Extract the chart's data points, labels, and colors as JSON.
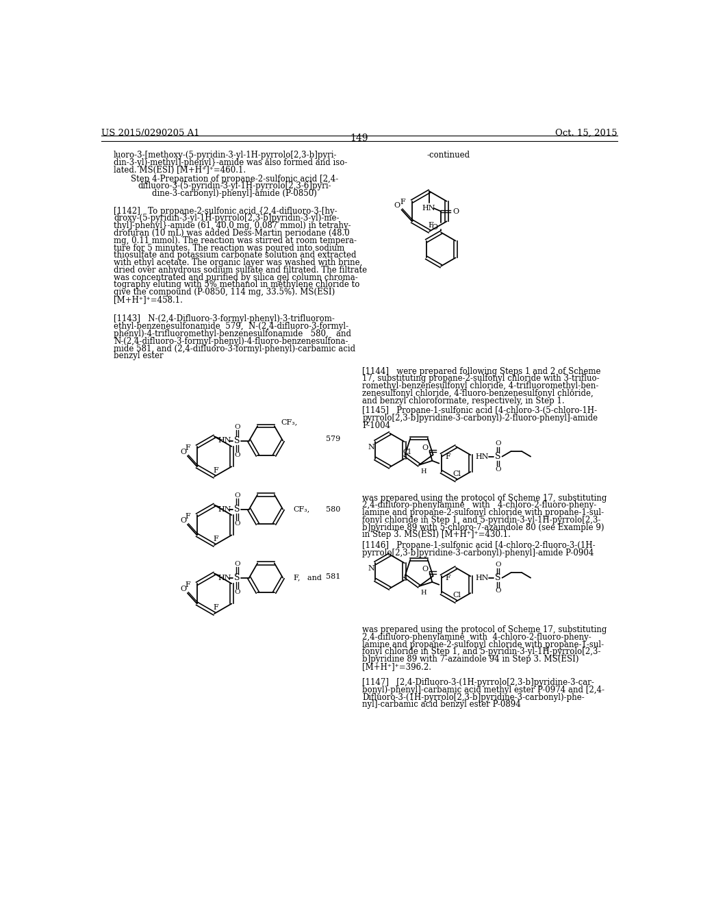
{
  "page_number": "149",
  "patent_number": "US 2015/0290205 A1",
  "patent_date": "Oct. 15, 2015",
  "background_color": "#ffffff",
  "top_text": "luoro-3-[methoxy-(5-pyridin-3-yl-1H-pyrrolo[2,3-b]pyri-\ndin-3-yl)-methyl]-phenyl}-amide was also formed and iso-\nlated. MS(ESI) [M+H⁺]⁺=460.1.",
  "step4_text": "Step 4-Preparation of propane-2-sulfonic acid [2,4-\ndifluoro-3-(5-pyridin-3-yl-1H-pyrrolo[2,3-6]pyri-\ndine-3-carbonyl)-phenyl]-amide (P-0850)",
  "p1142_text": "[1142]   To propane-2-sulfonic acid {2,4-difluoro-3-[hy-\ndroxy-(5-pyridin-3-yl-1H-pyrrolo[2,3-b]pyridin-3-yl)-me-\nthyl]-phenyl}-amide (61, 40.0 mg, 0.087 mmol) in tetrahy-\ndrofuran (10 mL) was added Dess-Martin periodane (48.0\nmg, 0.11 mmol). The reaction was stirred at room tempera-\nture for 5 minutes. The reaction was poured into sodium\nthiosulfate and potassium carbonate solution and extracted\nwith ethyl acetate. The organic layer was washed with brine,\ndried over anhydrous sodium sulfate and filtrated. The filtrate\nwas concentrated and purified by silica gel column chroma-\ntography eluting with 5% methanol in methylene chloride to\ngive the compound (P-0850, 114 mg, 33.5%). MS(ESI)\n[M+H⁺]⁺=458.1.",
  "p1143_text": "[1143]   N-(2,4-Difluoro-3-formyl-phenyl)-3-trifluorom-\nethyl-benzenesulfonamide  579,  N-(2,4-difluoro-3-formyl-\nphenyl)-4-trifluoromethyl-benzenesulfonamide   580,   and\nN-(2,4-difluoro-3-formyl-phenyl)-4-fluoro-benzenesulfona-\nmide 581, and (2,4-difluoro-3-formyl-phenyl)-carbamic acid\nbenzyl ester",
  "p1144_text": "[1144]   were prepared following Steps 1 and 2 of Scheme\n17, substituting propane-2-sulfonyl chloride with 3-trifluo-\nromethyl-benzenesulfonyl chloride, 4-trifluoromethyl-ben-\nzenesulfonyl chloride, 4-fluoro-benzenesulfonyl chloride,\nand benzyl chloroformate, respectively, in Step 1.",
  "p1145_text": "[1145]   Propane-1-sulfonic acid [4-chloro-3-(5-chloro-1H-\npyrrolo[2,3-b]pyridine-3-carbonyl)-2-fluoro-phenyl]-amide\nP-1004",
  "p1145b_text": "was prepared using the protocol of Scheme 17, substituting\n2,4-difluoro-phenylamine   with   4-chloro-2-fluoro-pheny-\nlamine and propane-2-sulfonyl chloride with propane-1-sul-\nfonyl chloride in Step 1, and 5-pyridin-3-yl-1H-pyrrolo[2,3-\nb]pyridine 89 with 5-chloro-7-azaindole 80 (see Example 9)\nin Step 3. MS(ESI) [M+H⁺]⁺=430.1.",
  "p1146_text": "[1146]   Propane-1-sulfonic acid [4-chloro-2-fluoro-3-(1H-\npyrrolo[2,3-b]pyridine-3-carbonyl)-phenyl]-amide P-0904",
  "p1146b_text": "was prepared using the protocol of Scheme 17, substituting\n2,4-difluoro-phenylamine  with  4-chloro-2-fluoro-pheny-\nlamine and propane-2-sulfonyl chloride with propane-1-sul-\nfonyl chloride in Step 1, and 5-pyridin-3-yl-1H-pyrrolo[2,3-\nb]pyridine 89 with 7-azaindole 94 in Step 3. MS(ESI)\n[M+H⁺]⁺=396.2.",
  "p1147_text": "[1147]   [2,4-Difluoro-3-(1H-pyrrolo[2,3-b]pyridine-3-car-\nbonyl)-phenyl]-carbamic acid methyl ester P-0974 and [2,4-\nDifluoro-3-(1H-pyrrolo[2,3-b]pyridine-3-carbonyl)-phe-\nnyl]-carbamic acid benzyl ester P-0894",
  "continued_label": "-continued"
}
